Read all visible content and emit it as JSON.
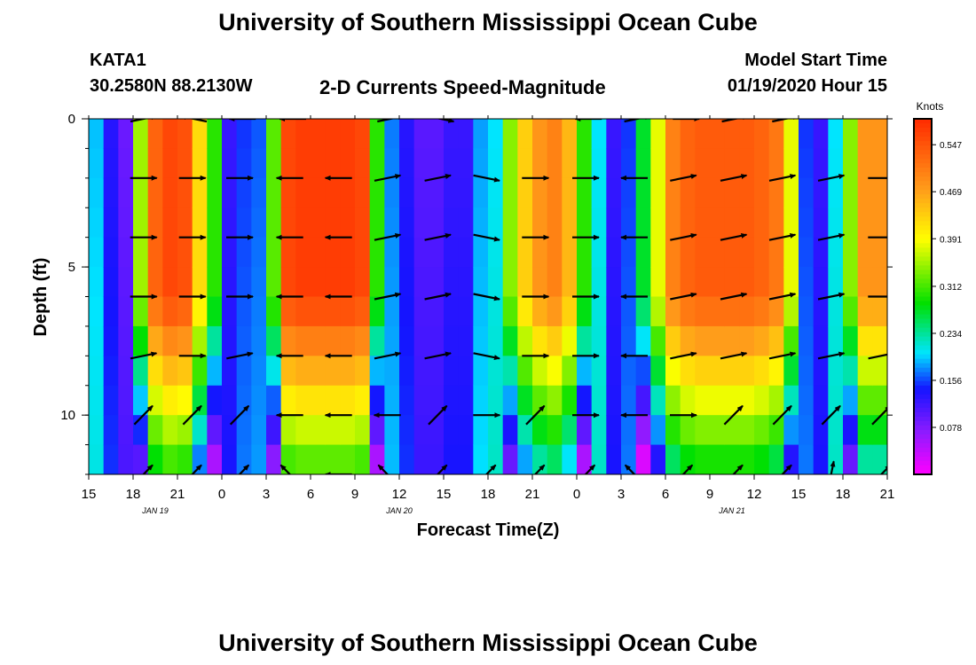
{
  "header": {
    "title": "University of Southern Mississippi Ocean Cube",
    "station": "KATA1",
    "coords": "30.2580N 88.2130W",
    "plot_title": "2-D Currents Speed-Magnitude",
    "model_label": "Model Start Time",
    "model_time": "01/19/2020 Hour 15"
  },
  "footer": {
    "title": "University of Southern Mississippi Ocean Cube"
  },
  "colors": {
    "magenta": "#ff00ff",
    "purple": "#8c1bff",
    "blue": "#1010ff",
    "cyan": "#00e5ff",
    "green": "#00e000",
    "yellow": "#ffff00",
    "orange": "#ff9d1a",
    "red": "#ff2a00"
  },
  "chart_data": {
    "type": "heatmap",
    "title": "2-D Currents Speed-Magnitude",
    "xlabel": "Forecast Time(Z)",
    "ylabel": "Depth (ft)",
    "x_ticks": [
      "15",
      "18",
      "21",
      "0",
      "3",
      "6",
      "9",
      "12",
      "15",
      "18",
      "21",
      "0",
      "3",
      "6",
      "9",
      "12",
      "15",
      "18",
      "21"
    ],
    "x_tick_hours": [
      0,
      3,
      6,
      9,
      12,
      15,
      18,
      21,
      24,
      27,
      30,
      33,
      36,
      39,
      42,
      45,
      48,
      51,
      54
    ],
    "x_range_hours": [
      0,
      54
    ],
    "date_labels": [
      {
        "text": "JAN 19",
        "hour": 4.5
      },
      {
        "text": "JAN 20",
        "hour": 21
      },
      {
        "text": "JAN 21",
        "hour": 43.5
      }
    ],
    "y_ticks": [
      "0",
      "5",
      "10"
    ],
    "y_tick_values": [
      0,
      5,
      10
    ],
    "ylim": [
      0,
      12
    ],
    "colorbar": {
      "unit": "Knots",
      "min": 0.0,
      "max": 0.59,
      "tick_values": [
        0.547,
        0.469,
        0.391,
        0.312,
        0.234,
        0.156,
        0.078
      ],
      "tick_labels": [
        "0.547",
        "0.469",
        "0.391",
        "0.312",
        "0.234",
        "0.156",
        "0.078"
      ]
    },
    "hour_columns": {
      "hours": [
        0,
        1,
        2,
        3,
        4,
        5,
        6,
        7,
        8,
        9,
        10,
        11,
        12,
        13,
        14,
        15,
        16,
        17,
        18,
        19,
        20,
        21,
        22,
        23,
        24,
        25,
        26,
        27,
        28,
        29,
        30,
        31,
        32,
        33,
        34,
        35,
        36,
        37,
        38,
        39,
        40,
        41,
        42,
        43,
        44,
        45,
        46,
        47,
        48,
        49,
        50,
        51,
        52,
        53
      ],
      "surface_speed": [
        0.19,
        0.13,
        0.09,
        0.35,
        0.53,
        0.56,
        0.55,
        0.42,
        0.3,
        0.12,
        0.15,
        0.16,
        0.32,
        0.56,
        0.57,
        0.57,
        0.57,
        0.57,
        0.56,
        0.3,
        0.17,
        0.13,
        0.1,
        0.1,
        0.12,
        0.12,
        0.18,
        0.2,
        0.34,
        0.43,
        0.48,
        0.5,
        0.45,
        0.3,
        0.2,
        0.12,
        0.15,
        0.27,
        0.38,
        0.5,
        0.53,
        0.54,
        0.54,
        0.54,
        0.54,
        0.53,
        0.51,
        0.38,
        0.15,
        0.12,
        0.2,
        0.34,
        0.48,
        0.48
      ]
    },
    "arrows": [
      {
        "hour": 3.7,
        "depth": 0.0,
        "dir": "NE"
      },
      {
        "hour": 7.1,
        "depth": 0.0,
        "dir": "NW"
      },
      {
        "hour": 10.4,
        "depth": 0.0,
        "dir": "W"
      },
      {
        "hour": 13.8,
        "depth": 0.0,
        "dir": "W"
      },
      {
        "hour": 20.4,
        "depth": 0.0,
        "dir": "NE"
      },
      {
        "hour": 23.8,
        "depth": 0.0,
        "dir": "SE"
      },
      {
        "hour": 33.8,
        "depth": 0.0,
        "dir": "W"
      },
      {
        "hour": 37.1,
        "depth": 0.0,
        "dir": "NE"
      },
      {
        "hour": 40.4,
        "depth": 0.0,
        "dir": "E"
      },
      {
        "hour": 43.7,
        "depth": 0.0,
        "dir": "NE"
      },
      {
        "hour": 47.1,
        "depth": 0.0,
        "dir": "NE"
      },
      {
        "hour": 3.7,
        "depth": 2.0,
        "dir": "E"
      },
      {
        "hour": 7.0,
        "depth": 2.0,
        "dir": "E"
      },
      {
        "hour": 10.2,
        "depth": 2.0,
        "dir": "E"
      },
      {
        "hour": 13.6,
        "depth": 2.0,
        "dir": "W"
      },
      {
        "hour": 16.9,
        "depth": 2.0,
        "dir": "W"
      },
      {
        "hour": 20.2,
        "depth": 2.0,
        "dir": "NE"
      },
      {
        "hour": 23.6,
        "depth": 2.0,
        "dir": "NE"
      },
      {
        "hour": 26.9,
        "depth": 2.0,
        "dir": "SE"
      },
      {
        "hour": 30.2,
        "depth": 2.0,
        "dir": "E"
      },
      {
        "hour": 33.6,
        "depth": 2.0,
        "dir": "E"
      },
      {
        "hour": 36.9,
        "depth": 2.0,
        "dir": "W"
      },
      {
        "hour": 40.2,
        "depth": 2.0,
        "dir": "NE"
      },
      {
        "hour": 43.6,
        "depth": 2.0,
        "dir": "NE"
      },
      {
        "hour": 46.9,
        "depth": 2.0,
        "dir": "NE"
      },
      {
        "hour": 50.2,
        "depth": 2.0,
        "dir": "NE"
      },
      {
        "hour": 53.6,
        "depth": 2.0,
        "dir": "E"
      },
      {
        "hour": 3.7,
        "depth": 4.0,
        "dir": "E"
      },
      {
        "hour": 7.0,
        "depth": 4.0,
        "dir": "E"
      },
      {
        "hour": 10.2,
        "depth": 4.0,
        "dir": "E"
      },
      {
        "hour": 13.6,
        "depth": 4.0,
        "dir": "W"
      },
      {
        "hour": 16.9,
        "depth": 4.0,
        "dir": "W"
      },
      {
        "hour": 20.2,
        "depth": 4.0,
        "dir": "NE"
      },
      {
        "hour": 23.6,
        "depth": 4.0,
        "dir": "NE"
      },
      {
        "hour": 26.9,
        "depth": 4.0,
        "dir": "SE"
      },
      {
        "hour": 30.2,
        "depth": 4.0,
        "dir": "E"
      },
      {
        "hour": 33.6,
        "depth": 4.0,
        "dir": "E"
      },
      {
        "hour": 36.9,
        "depth": 4.0,
        "dir": "W"
      },
      {
        "hour": 40.2,
        "depth": 4.0,
        "dir": "NE"
      },
      {
        "hour": 43.6,
        "depth": 4.0,
        "dir": "NE"
      },
      {
        "hour": 46.9,
        "depth": 4.0,
        "dir": "NE"
      },
      {
        "hour": 50.2,
        "depth": 4.0,
        "dir": "NE"
      },
      {
        "hour": 53.6,
        "depth": 4.0,
        "dir": "E"
      },
      {
        "hour": 3.7,
        "depth": 6.0,
        "dir": "E"
      },
      {
        "hour": 7.0,
        "depth": 6.0,
        "dir": "E"
      },
      {
        "hour": 10.2,
        "depth": 6.0,
        "dir": "E"
      },
      {
        "hour": 13.6,
        "depth": 6.0,
        "dir": "W"
      },
      {
        "hour": 16.9,
        "depth": 6.0,
        "dir": "W"
      },
      {
        "hour": 20.2,
        "depth": 6.0,
        "dir": "NE"
      },
      {
        "hour": 23.6,
        "depth": 6.0,
        "dir": "NE"
      },
      {
        "hour": 26.9,
        "depth": 6.0,
        "dir": "SE"
      },
      {
        "hour": 30.2,
        "depth": 6.0,
        "dir": "E"
      },
      {
        "hour": 33.6,
        "depth": 6.0,
        "dir": "E"
      },
      {
        "hour": 36.9,
        "depth": 6.0,
        "dir": "W"
      },
      {
        "hour": 40.2,
        "depth": 6.0,
        "dir": "NE"
      },
      {
        "hour": 43.6,
        "depth": 6.0,
        "dir": "NE"
      },
      {
        "hour": 46.9,
        "depth": 6.0,
        "dir": "NE"
      },
      {
        "hour": 50.2,
        "depth": 6.0,
        "dir": "NE"
      },
      {
        "hour": 53.6,
        "depth": 6.0,
        "dir": "E"
      },
      {
        "hour": 3.7,
        "depth": 8.0,
        "dir": "NE"
      },
      {
        "hour": 7.0,
        "depth": 8.0,
        "dir": "E"
      },
      {
        "hour": 10.2,
        "depth": 8.0,
        "dir": "NE"
      },
      {
        "hour": 13.6,
        "depth": 8.0,
        "dir": "W"
      },
      {
        "hour": 16.9,
        "depth": 8.0,
        "dir": "W"
      },
      {
        "hour": 20.2,
        "depth": 8.0,
        "dir": "NE"
      },
      {
        "hour": 23.6,
        "depth": 8.0,
        "dir": "NE"
      },
      {
        "hour": 26.9,
        "depth": 8.0,
        "dir": "SE"
      },
      {
        "hour": 30.2,
        "depth": 8.0,
        "dir": "E"
      },
      {
        "hour": 33.6,
        "depth": 8.0,
        "dir": "E"
      },
      {
        "hour": 36.9,
        "depth": 8.0,
        "dir": "W"
      },
      {
        "hour": 40.2,
        "depth": 8.0,
        "dir": "NE"
      },
      {
        "hour": 43.6,
        "depth": 8.0,
        "dir": "NE"
      },
      {
        "hour": 46.9,
        "depth": 8.0,
        "dir": "NE"
      },
      {
        "hour": 50.2,
        "depth": 8.0,
        "dir": "NE"
      },
      {
        "hour": 53.6,
        "depth": 8.0,
        "dir": "NE"
      },
      {
        "hour": 3.7,
        "depth": 10.0,
        "dir": "NE"
      },
      {
        "hour": 7.0,
        "depth": 10.0,
        "dir": "NE"
      },
      {
        "hour": 10.2,
        "depth": 10.0,
        "dir": "NE"
      },
      {
        "hour": 13.6,
        "depth": 10.0,
        "dir": "W"
      },
      {
        "hour": 16.9,
        "depth": 10.0,
        "dir": "W"
      },
      {
        "hour": 20.2,
        "depth": 10.0,
        "dir": "W"
      },
      {
        "hour": 23.6,
        "depth": 10.0,
        "dir": "NE"
      },
      {
        "hour": 26.9,
        "depth": 10.0,
        "dir": "E"
      },
      {
        "hour": 30.2,
        "depth": 10.0,
        "dir": "NE"
      },
      {
        "hour": 33.6,
        "depth": 10.0,
        "dir": "E"
      },
      {
        "hour": 36.9,
        "depth": 10.0,
        "dir": "W"
      },
      {
        "hour": 40.2,
        "depth": 10.0,
        "dir": "E"
      },
      {
        "hour": 43.6,
        "depth": 10.0,
        "dir": "NE"
      },
      {
        "hour": 46.9,
        "depth": 10.0,
        "dir": "NE"
      },
      {
        "hour": 50.2,
        "depth": 10.0,
        "dir": "NE"
      },
      {
        "hour": 53.6,
        "depth": 10.0,
        "dir": "NE"
      },
      {
        "hour": 3.7,
        "depth": 12.0,
        "dir": "NE"
      },
      {
        "hour": 7.0,
        "depth": 12.0,
        "dir": "NE"
      },
      {
        "hour": 10.2,
        "depth": 12.0,
        "dir": "NE"
      },
      {
        "hour": 13.6,
        "depth": 12.0,
        "dir": "NW"
      },
      {
        "hour": 16.9,
        "depth": 12.0,
        "dir": "W"
      },
      {
        "hour": 20.2,
        "depth": 12.0,
        "dir": "NW"
      },
      {
        "hour": 23.6,
        "depth": 12.0,
        "dir": "NE"
      },
      {
        "hour": 26.9,
        "depth": 12.0,
        "dir": "NE"
      },
      {
        "hour": 30.2,
        "depth": 12.0,
        "dir": "NE"
      },
      {
        "hour": 33.6,
        "depth": 12.0,
        "dir": "NE"
      },
      {
        "hour": 36.9,
        "depth": 12.0,
        "dir": "NW"
      },
      {
        "hour": 40.2,
        "depth": 12.0,
        "dir": "NE"
      },
      {
        "hour": 43.6,
        "depth": 12.0,
        "dir": "NE"
      },
      {
        "hour": 46.9,
        "depth": 12.0,
        "dir": "NE"
      },
      {
        "hour": 50.2,
        "depth": 12.0,
        "dir": "N"
      },
      {
        "hour": 53.6,
        "depth": 12.0,
        "dir": "NE"
      }
    ]
  }
}
